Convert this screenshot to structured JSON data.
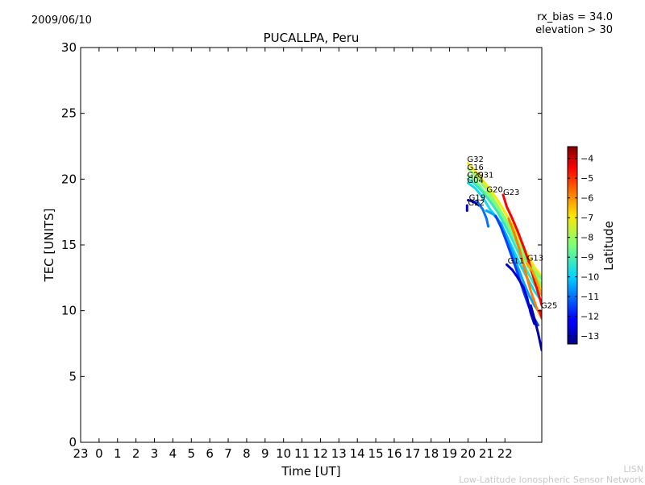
{
  "header": {
    "date": "2009/06/10",
    "rx_bias": "rx_bias = 34.0",
    "elevation": "elevation > 30"
  },
  "credit": {
    "line1": "LISN",
    "line2": "Low-Latitude Ionospheric Sensor Network"
  },
  "chart_data": {
    "type": "scatter",
    "title": "PUCALLPA, Peru",
    "xlabel": "Time [UT]",
    "ylabel": "TEC [UNITS]",
    "xlim": [
      -1,
      24
    ],
    "ylim": [
      0,
      30
    ],
    "x_ticks": [
      -1,
      0,
      1,
      2,
      3,
      4,
      5,
      6,
      7,
      8,
      9,
      10,
      11,
      12,
      13,
      14,
      15,
      16,
      17,
      18,
      19,
      20,
      21,
      22
    ],
    "x_tick_labels": [
      "23",
      "0",
      "1",
      "2",
      "3",
      "4",
      "5",
      "6",
      "7",
      "8",
      "9",
      "10",
      "11",
      "12",
      "13",
      "14",
      "15",
      "16",
      "17",
      "18",
      "19",
      "20",
      "21",
      "22"
    ],
    "y_ticks": [
      0,
      5,
      10,
      15,
      20,
      25,
      30
    ],
    "colorbar": {
      "label": "Latitude",
      "range": [
        -13.4,
        -3.4
      ],
      "ticks": [
        -4,
        -5,
        -6,
        -7,
        -8,
        -9,
        -10,
        -11,
        -12,
        -13
      ],
      "tick_labels": [
        "−4",
        "−5",
        "−6",
        "−7",
        "−8",
        "−9",
        "−10",
        "−11",
        "−12",
        "−13"
      ]
    },
    "series": [
      {
        "name": "G32",
        "latitude": -7.0,
        "points": [
          [
            20.0,
            21.2
          ],
          [
            20.4,
            20.6
          ],
          [
            20.8,
            19.9
          ],
          [
            21.2,
            19.2
          ],
          [
            21.6,
            18.4
          ],
          [
            22.0,
            17.5
          ],
          [
            22.4,
            16.5
          ],
          [
            22.8,
            15.4
          ],
          [
            23.2,
            14.3
          ],
          [
            23.6,
            13.3
          ],
          [
            24.0,
            12.6
          ]
        ]
      },
      {
        "name": "G16",
        "latitude": -8.0,
        "points": [
          [
            20.0,
            20.8
          ],
          [
            20.4,
            20.3
          ],
          [
            20.8,
            19.6
          ],
          [
            21.2,
            18.9
          ],
          [
            21.6,
            18.0
          ],
          [
            22.0,
            17.0
          ],
          [
            22.4,
            15.9
          ],
          [
            22.8,
            14.7
          ],
          [
            23.2,
            13.5
          ],
          [
            23.6,
            12.5
          ],
          [
            24.0,
            11.8
          ]
        ]
      },
      {
        "name": "G29",
        "latitude": -8.5,
        "points": [
          [
            20.0,
            20.3
          ],
          [
            20.4,
            19.9
          ],
          [
            20.8,
            19.2
          ],
          [
            21.2,
            18.5
          ],
          [
            21.6,
            17.7
          ],
          [
            22.0,
            16.8
          ],
          [
            22.4,
            15.8
          ],
          [
            22.8,
            14.7
          ],
          [
            23.2,
            13.7
          ],
          [
            23.6,
            13.0
          ],
          [
            24.0,
            12.4
          ]
        ]
      },
      {
        "name": "G31",
        "latitude": -9.3,
        "points": [
          [
            20.0,
            20.0
          ],
          [
            20.4,
            19.6
          ],
          [
            20.8,
            19.0
          ],
          [
            21.2,
            18.3
          ],
          [
            21.6,
            17.5
          ],
          [
            22.0,
            16.5
          ],
          [
            22.4,
            15.4
          ],
          [
            22.8,
            14.2
          ],
          [
            23.2,
            13.0
          ],
          [
            23.6,
            12.0
          ],
          [
            24.0,
            11.2
          ]
        ]
      },
      {
        "name": "G04",
        "latitude": -9.8,
        "points": [
          [
            20.0,
            19.7
          ],
          [
            20.4,
            19.3
          ],
          [
            20.8,
            18.6
          ],
          [
            21.2,
            17.7
          ],
          [
            21.6,
            17.0
          ],
          [
            22.0,
            16.0
          ],
          [
            22.4,
            14.8
          ],
          [
            22.8,
            13.6
          ],
          [
            23.2,
            12.5
          ],
          [
            23.6,
            11.5
          ],
          [
            24.0,
            10.7
          ]
        ]
      },
      {
        "name": "G20",
        "latitude": -8.2,
        "points": [
          [
            21.0,
            19.0
          ],
          [
            21.4,
            18.3
          ],
          [
            21.8,
            17.5
          ],
          [
            22.2,
            16.6
          ],
          [
            22.6,
            15.6
          ],
          [
            23.0,
            14.5
          ],
          [
            23.4,
            13.4
          ],
          [
            23.8,
            12.4
          ],
          [
            24.0,
            12.0
          ]
        ]
      },
      {
        "name": "G23",
        "latitude": -4.5,
        "points": [
          [
            21.9,
            18.8
          ],
          [
            22.1,
            17.9
          ],
          [
            22.4,
            17.0
          ],
          [
            22.7,
            16.0
          ],
          [
            23.0,
            14.9
          ],
          [
            23.3,
            13.7
          ],
          [
            23.6,
            12.3
          ],
          [
            23.9,
            10.9
          ],
          [
            24.0,
            10.4
          ]
        ]
      },
      {
        "name": "G19",
        "latitude": -12.8,
        "points": [
          [
            20.0,
            18.4
          ],
          [
            20.3,
            18.3
          ],
          [
            20.6,
            18.0
          ]
        ]
      },
      {
        "name": "G22",
        "latitude": -12.7,
        "points": [
          [
            19.95,
            18.0
          ],
          [
            19.95,
            17.6
          ]
        ]
      },
      {
        "name": "",
        "latitude": -11.0,
        "points": [
          [
            20.5,
            18.3
          ],
          [
            20.8,
            17.7
          ],
          [
            21.0,
            17.0
          ],
          [
            21.1,
            16.4
          ]
        ]
      },
      {
        "name": "",
        "latitude": -10.5,
        "points": [
          [
            21.0,
            17.6
          ],
          [
            21.4,
            17.3
          ],
          [
            21.8,
            16.6
          ],
          [
            22.1,
            15.6
          ],
          [
            22.4,
            14.5
          ],
          [
            22.7,
            13.3
          ],
          [
            23.0,
            12.2
          ],
          [
            23.3,
            11.2
          ],
          [
            23.6,
            10.4
          ],
          [
            24.0,
            9.6
          ]
        ]
      },
      {
        "name": "",
        "latitude": -11.5,
        "points": [
          [
            21.5,
            17.2
          ],
          [
            21.8,
            16.3
          ],
          [
            22.1,
            15.2
          ],
          [
            22.4,
            14.0
          ],
          [
            22.7,
            12.8
          ],
          [
            23.0,
            11.5
          ],
          [
            23.3,
            10.3
          ],
          [
            23.6,
            9.4
          ],
          [
            23.8,
            8.9
          ]
        ]
      },
      {
        "name": "",
        "latitude": -5.8,
        "points": [
          [
            22.2,
            17.0
          ],
          [
            22.5,
            15.9
          ],
          [
            22.8,
            14.6
          ],
          [
            23.1,
            13.0
          ],
          [
            23.4,
            11.5
          ],
          [
            23.7,
            10.3
          ],
          [
            24.0,
            9.4
          ]
        ]
      },
      {
        "name": "G11",
        "latitude": -12.6,
        "points": [
          [
            22.1,
            13.5
          ],
          [
            22.4,
            13.1
          ],
          [
            22.7,
            12.5
          ],
          [
            23.0,
            11.8
          ],
          [
            23.2,
            11.0
          ],
          [
            23.4,
            9.8
          ],
          [
            23.6,
            9.0
          ]
        ]
      },
      {
        "name": "",
        "latitude": -13.0,
        "points": [
          [
            23.4,
            10.4
          ],
          [
            23.6,
            9.4
          ],
          [
            23.8,
            8.3
          ],
          [
            24.0,
            7.0
          ]
        ]
      },
      {
        "name": "G13",
        "latitude": -6.2,
        "points": [
          [
            23.2,
            13.6
          ],
          [
            23.5,
            13.0
          ],
          [
            23.8,
            12.0
          ],
          [
            24.0,
            11.2
          ]
        ]
      },
      {
        "name": "G25",
        "latitude": -4.3,
        "points": [
          [
            23.9,
            10.0
          ],
          [
            24.0,
            9.5
          ]
        ]
      }
    ],
    "labels": [
      {
        "text": "G32",
        "x": 19.95,
        "y": 21.3
      },
      {
        "text": "G16",
        "x": 19.95,
        "y": 20.7
      },
      {
        "text": "G29",
        "x": 19.95,
        "y": 20.1
      },
      {
        "text": "G31",
        "x": 20.5,
        "y": 20.1
      },
      {
        "text": "G04",
        "x": 19.95,
        "y": 19.7
      },
      {
        "text": "G20",
        "x": 21.0,
        "y": 19.0
      },
      {
        "text": "G23",
        "x": 21.9,
        "y": 18.8
      },
      {
        "text": "G19",
        "x": 20.05,
        "y": 18.4
      },
      {
        "text": "G22",
        "x": 20.0,
        "y": 18.0
      },
      {
        "text": "G11",
        "x": 22.15,
        "y": 13.6
      },
      {
        "text": "G13",
        "x": 23.2,
        "y": 13.8
      },
      {
        "text": "G25",
        "x": 23.95,
        "y": 10.2
      }
    ]
  }
}
